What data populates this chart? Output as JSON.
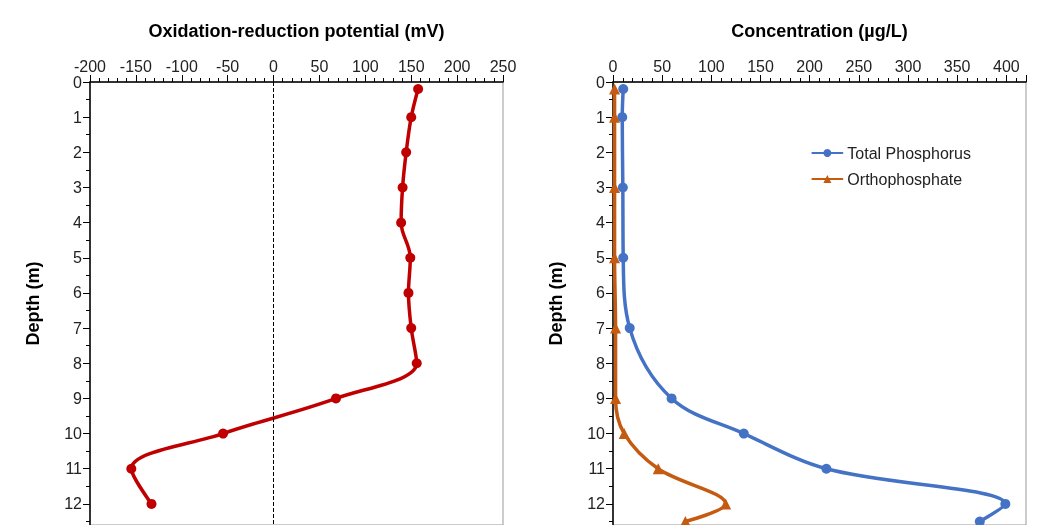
{
  "chart_data": [
    {
      "type": "line",
      "xlabel": "Oxidation-reduction potential (mV)",
      "ylabel": "Depth (m)",
      "xlim": [
        -200,
        250
      ],
      "xticks": [
        -200,
        -150,
        -100,
        -50,
        0,
        50,
        100,
        150,
        200,
        250
      ],
      "ylim": [
        12.6,
        0
      ],
      "yticks": [
        0,
        1,
        2,
        3,
        4,
        5,
        6,
        7,
        8,
        9,
        10,
        11,
        12
      ],
      "grid": false,
      "legend": false,
      "marker": "circle",
      "line_style": "solid",
      "ref_lines": [
        {
          "axis": "x",
          "value": 0,
          "color": "#000000",
          "line_style": "dashed"
        }
      ],
      "series": [
        {
          "color": "#c00000",
          "x": [
            157.5,
            150,
            144.5,
            140.6,
            139,
            149,
            147,
            150,
            156,
            68,
            -55,
            -155,
            -133
          ],
          "values": [
            0.2,
            1,
            2,
            3,
            4,
            5,
            6,
            7,
            8,
            9,
            10,
            11,
            12
          ]
        }
      ]
    },
    {
      "type": "line",
      "xlabel": "Concentration (µg/L)",
      "ylabel": "Depth (m)",
      "xlim": [
        0,
        420
      ],
      "xticks": [
        0,
        50,
        100,
        150,
        200,
        250,
        300,
        350,
        400
      ],
      "ylim": [
        12.6,
        0
      ],
      "yticks": [
        0,
        1,
        2,
        3,
        4,
        5,
        6,
        7,
        8,
        9,
        10,
        11,
        12
      ],
      "grid": false,
      "legend": "top right",
      "line_style": "solid",
      "series": [
        {
          "name": "Total Phosphorus",
          "color": "#4472c4",
          "marker": "circle",
          "x": [
            10.4,
            9.4,
            10,
            10.4,
            17,
            59.6,
            133,
            217,
            399,
            373
          ],
          "values": [
            0.2,
            1,
            3,
            5,
            7,
            9,
            10,
            11,
            12,
            12.5
          ]
        },
        {
          "name": "Orthophosphate",
          "color": "#c55a11",
          "marker": "triangle",
          "x": [
            1.6,
            1.6,
            1.6,
            1.6,
            2.6,
            2.6,
            11.4,
            46,
            114.6,
            73.6
          ],
          "values": [
            0.2,
            1,
            3,
            5,
            7,
            9,
            10,
            11,
            12,
            12.5
          ]
        }
      ]
    }
  ]
}
